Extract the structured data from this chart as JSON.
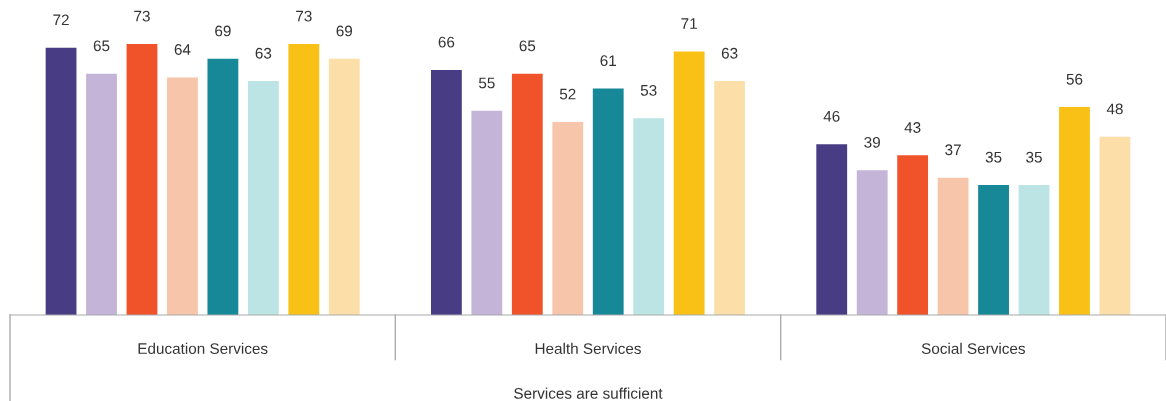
{
  "chart_data": {
    "type": "bar",
    "categories": [
      "Education Services",
      "Health Services",
      "Social Services"
    ],
    "xlabel": "Services are sufficient",
    "series": [
      {
        "color": "#483d85",
        "values": [
          72,
          66,
          46
        ]
      },
      {
        "color": "#c4b4d8",
        "values": [
          65,
          55,
          39
        ]
      },
      {
        "color": "#f0522a",
        "values": [
          73,
          65,
          43
        ]
      },
      {
        "color": "#f7c6aa",
        "values": [
          64,
          52,
          37
        ]
      },
      {
        "color": "#168897",
        "values": [
          69,
          61,
          35
        ]
      },
      {
        "color": "#bde4e4",
        "values": [
          63,
          53,
          35
        ]
      },
      {
        "color": "#f9c116",
        "values": [
          73,
          71,
          56
        ]
      },
      {
        "color": "#fcdea8",
        "values": [
          69,
          63,
          48
        ]
      }
    ],
    "data_labels": true,
    "grid": false,
    "legend": false
  }
}
